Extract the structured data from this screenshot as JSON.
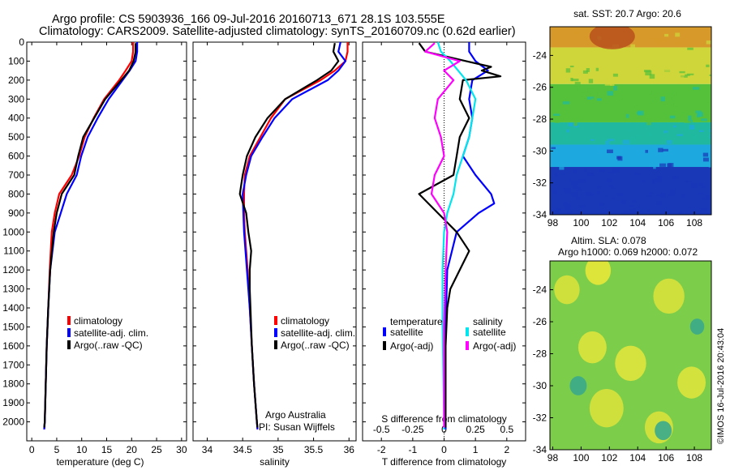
{
  "header": {
    "line1": "Argo profile: CS 5903936_166 09-Jul-2016 20160713_671 28.1S 103.555E",
    "line2": "Climatology: CARS2009. Satellite-adjusted climatology: synTS_20160709.nc (0.62d earlier)"
  },
  "colors": {
    "clim": "#ff0000",
    "sat": "#0000ff",
    "argo": "#000000",
    "sal_sat": "#00e5ee",
    "sal_argo": "#ff00ff"
  },
  "chart_data": [
    {
      "id": "temperature",
      "type": "line",
      "xlabel": "temperature (deg C)",
      "xlim": [
        -1,
        31
      ],
      "ylim": [
        2100,
        0
      ],
      "xticks": [
        "0",
        "5",
        "10",
        "15",
        "20",
        "25",
        "30"
      ],
      "xtick_values": [
        0,
        5,
        10,
        15,
        20,
        25,
        30
      ],
      "yticks": [
        "0",
        "100",
        "200",
        "300",
        "400",
        "500",
        "600",
        "700",
        "800",
        "900",
        "1000",
        "1100",
        "1200",
        "1300",
        "1400",
        "1500",
        "1600",
        "1700",
        "1800",
        "1900",
        "2000"
      ],
      "legend": [
        "climatology",
        "satellite-adj. clim.",
        "Argo(..raw -QC)"
      ],
      "series": [
        {
          "name": "climatology",
          "color": "clim",
          "depth": [
            0,
            50,
            100,
            150,
            200,
            300,
            400,
            500,
            600,
            700,
            800,
            900,
            1000,
            1200,
            1400,
            1600,
            1800,
            2000,
            2040
          ],
          "values": [
            20.3,
            20.3,
            20.0,
            18.8,
            17.5,
            14.5,
            12.4,
            10.6,
            9.5,
            8.0,
            5.5,
            4.6,
            4.0,
            3.6,
            3.3,
            3.0,
            2.8,
            2.6,
            2.5
          ]
        },
        {
          "name": "satellite-adj. clim.",
          "color": "sat",
          "depth": [
            0,
            50,
            100,
            150,
            200,
            300,
            400,
            500,
            600,
            700,
            800,
            900,
            1000,
            1200,
            1400,
            1600,
            1800,
            2000,
            2040
          ],
          "values": [
            21.1,
            21.1,
            20.8,
            19.6,
            18.2,
            15.4,
            13.2,
            11.2,
            9.9,
            9.0,
            7.0,
            5.8,
            4.6,
            3.7,
            3.3,
            3.0,
            2.8,
            2.6,
            2.5
          ]
        },
        {
          "name": "Argo(..raw -QC)",
          "color": "argo",
          "depth": [
            5,
            50,
            100,
            150,
            200,
            300,
            400,
            500,
            600,
            700,
            800,
            900,
            1000,
            1200,
            1400,
            1600,
            1800,
            2000,
            2030
          ],
          "values": [
            20.8,
            20.8,
            20.4,
            19.5,
            17.9,
            14.7,
            12.5,
            10.3,
            9.3,
            8.5,
            6.0,
            5.0,
            4.4,
            3.7,
            3.3,
            3.0,
            2.8,
            2.6,
            2.5
          ]
        }
      ]
    },
    {
      "id": "salinity",
      "type": "line",
      "xlabel": "salinity",
      "xlim": [
        33.8,
        36.1
      ],
      "ylim": [
        2100,
        0
      ],
      "xticks": [
        "34",
        "34.5",
        "35",
        "35.5",
        "36"
      ],
      "xtick_values": [
        34,
        34.5,
        35,
        35.5,
        36
      ],
      "legend": [
        "climatology",
        "satellite-adj. clim.",
        "Argo(..raw -QC)"
      ],
      "annotations": [
        "Argo Australia",
        "PI: Susan Wijffels"
      ],
      "series": [
        {
          "name": "climatology",
          "color": "clim",
          "depth": [
            0,
            50,
            100,
            150,
            200,
            300,
            400,
            500,
            600,
            700,
            800,
            900,
            1000,
            1200,
            1400,
            1600,
            1800,
            2000,
            2040
          ],
          "values": [
            35.98,
            35.98,
            35.95,
            35.8,
            35.6,
            35.1,
            34.9,
            34.75,
            34.6,
            34.53,
            34.52,
            34.52,
            34.53,
            34.57,
            34.6,
            34.63,
            34.66,
            34.7,
            34.71
          ]
        },
        {
          "name": "satellite-adj. clim.",
          "color": "sat",
          "depth": [
            0,
            50,
            100,
            150,
            200,
            300,
            400,
            500,
            600,
            700,
            800,
            900,
            1000,
            1200,
            1400,
            1600,
            1800,
            2000,
            2040
          ],
          "values": [
            35.88,
            35.85,
            35.95,
            35.85,
            35.7,
            35.2,
            34.95,
            34.78,
            34.62,
            34.55,
            34.5,
            34.51,
            34.52,
            34.56,
            34.6,
            34.63,
            34.66,
            34.7,
            34.71
          ]
        },
        {
          "name": "Argo(..raw -QC)",
          "color": "argo",
          "depth": [
            5,
            50,
            100,
            150,
            200,
            300,
            400,
            500,
            600,
            700,
            800,
            900,
            1000,
            1100,
            1200,
            1300,
            1400,
            1600,
            1800,
            2000,
            2030
          ],
          "values": [
            35.8,
            35.78,
            35.85,
            35.75,
            35.55,
            35.1,
            34.85,
            34.68,
            34.56,
            34.5,
            34.46,
            34.55,
            34.58,
            34.62,
            34.6,
            34.6,
            34.61,
            34.63,
            34.66,
            34.7,
            34.71
          ]
        }
      ]
    },
    {
      "id": "difference",
      "type": "line",
      "xlabel": "T difference from climatology",
      "xlabel2": "S difference from climatology",
      "xlim": [
        -2.6,
        2.6
      ],
      "ylim": [
        2100,
        0
      ],
      "xticks": [
        "-2",
        "-1",
        "0",
        "1",
        "2"
      ],
      "xtick_values": [
        -2,
        -1,
        0,
        1,
        2
      ],
      "xticks_s": [
        "-0.5",
        "-0.25",
        "0",
        "0.25",
        "0.5"
      ],
      "xtick_values_s": [
        -2,
        -1,
        0,
        1,
        2
      ],
      "legend_header": [
        "temperature",
        "salinity"
      ],
      "legend": [
        "satellite",
        "Argo(-adj)",
        "satellite",
        "Argo(-adj)"
      ],
      "series": [
        {
          "name": "satellite",
          "color": "sat",
          "depth": [
            0,
            50,
            100,
            150,
            200,
            300,
            400,
            500,
            600,
            700,
            800,
            850,
            900,
            1000,
            1200,
            1500,
            2000,
            2040
          ],
          "values": [
            0.8,
            0.8,
            1.0,
            1.4,
            0.9,
            0.8,
            0.9,
            0.8,
            0.6,
            1.0,
            1.5,
            1.6,
            1.1,
            0.4,
            0.1,
            0.05,
            0.05,
            0.05
          ]
        },
        {
          "name": "Argo(-adj)",
          "color": "argo",
          "depth": [
            5,
            50,
            100,
            130,
            150,
            180,
            200,
            300,
            400,
            500,
            600,
            700,
            800,
            850,
            900,
            1000,
            1100,
            1200,
            1300,
            1400,
            1600,
            2000,
            2030
          ],
          "values": [
            -0.8,
            -0.6,
            0.7,
            1.5,
            1.2,
            1.8,
            0.6,
            0.5,
            0.8,
            0.5,
            0.4,
            0.3,
            -0.8,
            -0.5,
            -0.2,
            0.4,
            0.8,
            0.5,
            0.2,
            0.1,
            0.05,
            0.05,
            0.05
          ]
        },
        {
          "name": "satellite",
          "color": "sal_sat",
          "depth": [
            0,
            50,
            100,
            200,
            300,
            400,
            500,
            600,
            700,
            800,
            900,
            1000,
            1200,
            1500,
            2000,
            2040
          ],
          "values": [
            -0.2,
            -0.1,
            0.2,
            0.7,
            1.0,
            0.9,
            0.8,
            0.6,
            0.4,
            0.3,
            0.1,
            0.0,
            -0.05,
            -0.05,
            0.0,
            0.0
          ]
        },
        {
          "name": "Argo(-adj)",
          "color": "sal_argo",
          "depth": [
            5,
            50,
            100,
            150,
            200,
            300,
            400,
            500,
            600,
            700,
            800,
            900,
            1000,
            1200,
            1500,
            2000,
            2030
          ],
          "values": [
            -0.3,
            -0.6,
            0.5,
            0.0,
            0.3,
            -0.2,
            -0.3,
            -0.1,
            0.0,
            -0.3,
            -0.4,
            0.0,
            0.1,
            0.05,
            0.0,
            0.0,
            0.0
          ]
        }
      ]
    },
    {
      "id": "sst-map",
      "type": "heatmap",
      "title": "sat. SST: 20.7 Argo: 20.6",
      "xlim": [
        97.8,
        109.2
      ],
      "ylim": [
        -34,
        -22.2
      ],
      "xticks": [
        "98",
        "100",
        "102",
        "104",
        "106",
        "108"
      ],
      "xtick_values": [
        98,
        100,
        102,
        104,
        106,
        108
      ],
      "yticks": [
        "-24",
        "-26",
        "-28",
        "-30",
        "-32",
        "-34"
      ],
      "ytick_values": [
        -24,
        -26,
        -28,
        -30,
        -32,
        -34
      ],
      "bands": [
        {
          "lat_top": -22.2,
          "lat_bottom": -23.5,
          "color": "#d79a2a"
        },
        {
          "lat_top": -23.5,
          "lat_bottom": -25.8,
          "color": "#cfd63a"
        },
        {
          "lat_top": -25.8,
          "lat_bottom": -28.2,
          "color": "#55c13a"
        },
        {
          "lat_top": -28.2,
          "lat_bottom": -29.6,
          "color": "#20b9a0"
        },
        {
          "lat_top": -29.6,
          "lat_bottom": -31.0,
          "color": "#1ea8e0"
        },
        {
          "lat_top": -31.0,
          "lat_bottom": -34.0,
          "color": "#1838b8"
        }
      ],
      "hot_spot": {
        "lon": 102.2,
        "lat": -22.8,
        "color": "#b8501c"
      }
    },
    {
      "id": "sla-map",
      "type": "heatmap",
      "title": "Altim. SLA: 0.078",
      "subtitle": "Argo h1000: 0.069 h2000: 0.072",
      "xlim": [
        97.8,
        109.2
      ],
      "ylim": [
        -34,
        -22.2
      ],
      "xticks": [
        "98",
        "100",
        "102",
        "104",
        "106",
        "108"
      ],
      "xtick_values": [
        98,
        100,
        102,
        104,
        106,
        108
      ],
      "yticks": [
        "-24",
        "-26",
        "-28",
        "-30",
        "-32",
        "-34"
      ],
      "ytick_values": [
        -24,
        -26,
        -28,
        -30,
        -32,
        -34
      ],
      "base_color": "#7ccd4a",
      "blobs": [
        {
          "lon": 101.2,
          "lat": -22.8,
          "r": 0.9,
          "color": "#e8e83a"
        },
        {
          "lon": 99.0,
          "lat": -24.0,
          "r": 0.9,
          "color": "#d8e23c"
        },
        {
          "lon": 106.2,
          "lat": -24.4,
          "r": 1.1,
          "color": "#d8e23c"
        },
        {
          "lon": 100.8,
          "lat": -27.6,
          "r": 1.0,
          "color": "#dde43c"
        },
        {
          "lon": 103.5,
          "lat": -28.6,
          "r": 1.1,
          "color": "#e0e43c"
        },
        {
          "lon": 107.8,
          "lat": -29.8,
          "r": 1.0,
          "color": "#dde43c"
        },
        {
          "lon": 101.8,
          "lat": -31.4,
          "r": 1.2,
          "color": "#d8e23c"
        },
        {
          "lon": 105.5,
          "lat": -32.6,
          "r": 1.0,
          "color": "#d8e23c"
        },
        {
          "lon": 99.8,
          "lat": -30.0,
          "r": 0.6,
          "color": "#3aaa8c"
        },
        {
          "lon": 105.8,
          "lat": -32.8,
          "r": 0.6,
          "color": "#3aaa8c"
        },
        {
          "lon": 108.2,
          "lat": -26.3,
          "r": 0.5,
          "color": "#3aaa8c"
        }
      ]
    }
  ],
  "credit": "©IMOS 16-Jul-2016 20:43:04"
}
